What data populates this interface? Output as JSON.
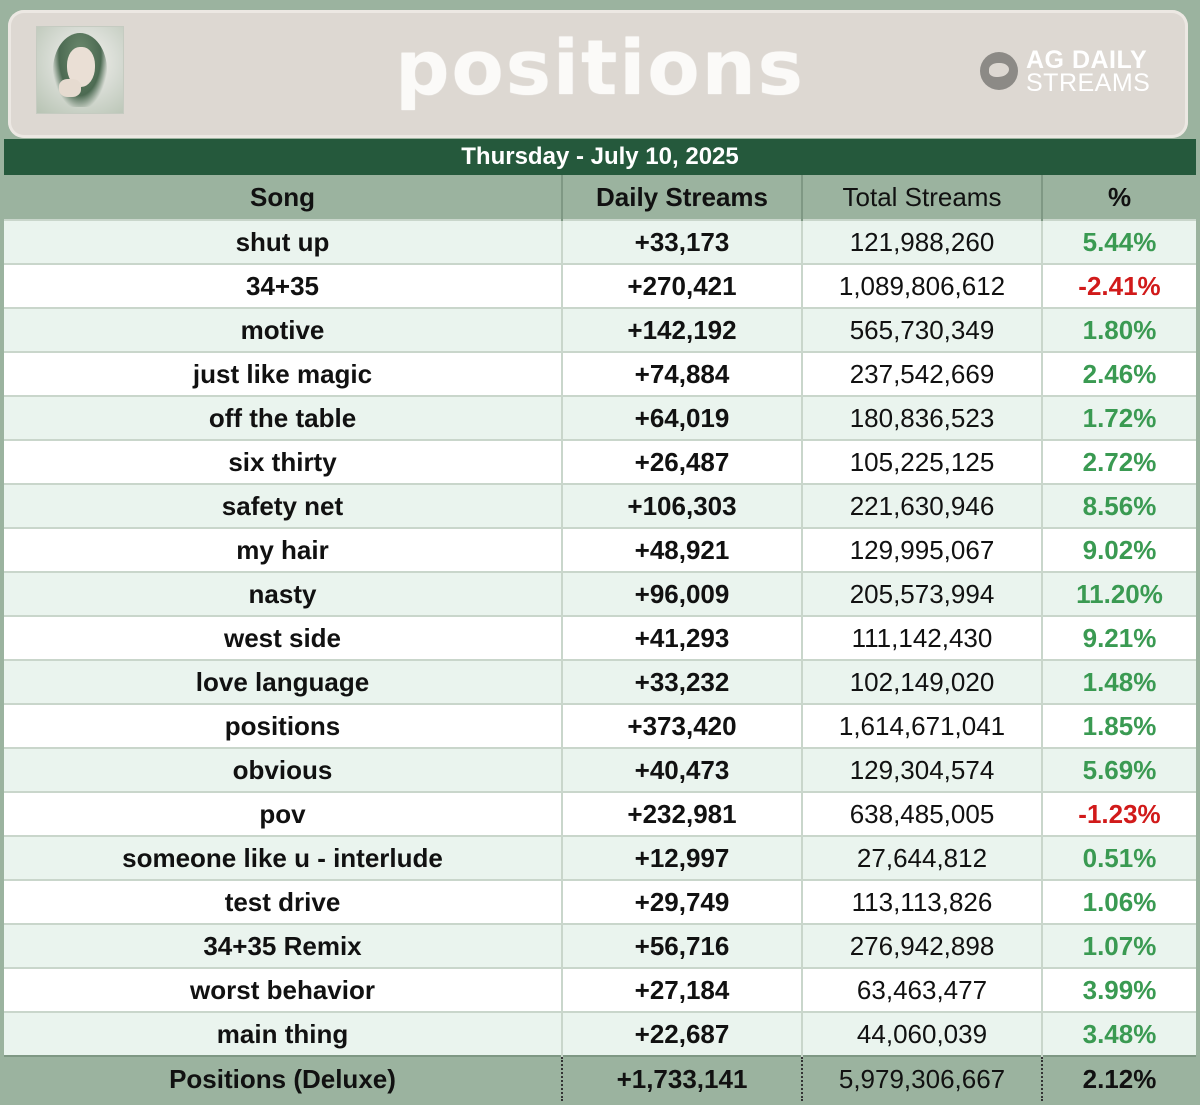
{
  "header": {
    "album_title": "positions",
    "brand_line1": "AG DAILY",
    "brand_line2": "STREAMS",
    "cover_icon": "album-cover"
  },
  "date": "Thursday - July 10, 2025",
  "table": {
    "columns": [
      "Song",
      "Daily Streams",
      "Total Streams",
      "%"
    ],
    "rows": [
      {
        "song": "shut up",
        "daily": "+33,173",
        "total": "121,988,260",
        "pct": "5.44%"
      },
      {
        "song": "34+35",
        "daily": "+270,421",
        "total": "1,089,806,612",
        "pct": "-2.41%"
      },
      {
        "song": "motive",
        "daily": "+142,192",
        "total": "565,730,349",
        "pct": "1.80%"
      },
      {
        "song": "just like magic",
        "daily": "+74,884",
        "total": "237,542,669",
        "pct": "2.46%"
      },
      {
        "song": "off the table",
        "daily": "+64,019",
        "total": "180,836,523",
        "pct": "1.72%"
      },
      {
        "song": "six thirty",
        "daily": "+26,487",
        "total": "105,225,125",
        "pct": "2.72%"
      },
      {
        "song": "safety net",
        "daily": "+106,303",
        "total": "221,630,946",
        "pct": "8.56%"
      },
      {
        "song": "my hair",
        "daily": "+48,921",
        "total": "129,995,067",
        "pct": "9.02%"
      },
      {
        "song": "nasty",
        "daily": "+96,009",
        "total": "205,573,994",
        "pct": "11.20%"
      },
      {
        "song": "west side",
        "daily": "+41,293",
        "total": "111,142,430",
        "pct": "9.21%"
      },
      {
        "song": "love language",
        "daily": "+33,232",
        "total": "102,149,020",
        "pct": "1.48%"
      },
      {
        "song": "positions",
        "daily": "+373,420",
        "total": "1,614,671,041",
        "pct": "1.85%"
      },
      {
        "song": "obvious",
        "daily": "+40,473",
        "total": "129,304,574",
        "pct": "5.69%"
      },
      {
        "song": "pov",
        "daily": "+232,981",
        "total": "638,485,005",
        "pct": "-1.23%"
      },
      {
        "song": "someone like u - interlude",
        "daily": "+12,997",
        "total": "27,644,812",
        "pct": "0.51%"
      },
      {
        "song": "test drive",
        "daily": "+29,749",
        "total": "113,113,826",
        "pct": "1.06%"
      },
      {
        "song": "34+35 Remix",
        "daily": "+56,716",
        "total": "276,942,898",
        "pct": "1.07%"
      },
      {
        "song": "worst behavior",
        "daily": "+27,184",
        "total": "63,463,477",
        "pct": "3.99%"
      },
      {
        "song": "main thing",
        "daily": "+22,687",
        "total": "44,060,039",
        "pct": "3.48%"
      }
    ],
    "total_row": {
      "song": "Positions (Deluxe)",
      "daily": "+1,733,141",
      "total": "5,979,306,667",
      "pct": "2.12%"
    }
  },
  "colors": {
    "date_bar": "#25593c",
    "header_bg": "#9bb39f",
    "positive": "#3a9a52",
    "negative": "#d11a1a",
    "row_alt": "#eaf4ee"
  }
}
